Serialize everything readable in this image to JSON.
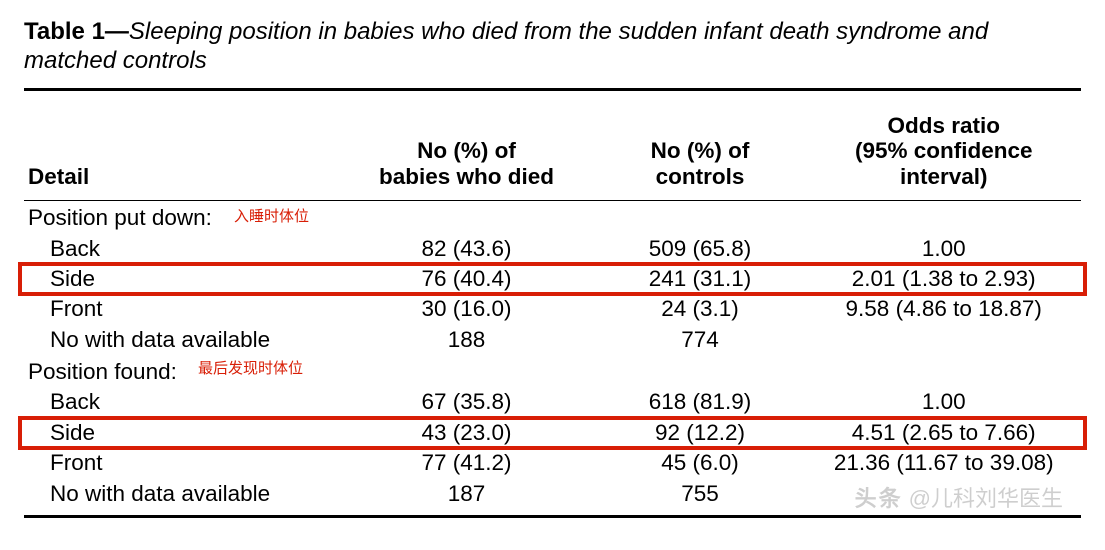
{
  "title_prefix": "Table 1—",
  "title_text": "Sleeping position in babies who died from the sudden infant death syndrome and matched controls",
  "columns": {
    "detail": "Detail",
    "died": "No (%) of\nbabies who died",
    "controls": "No (%) of\ncontrols",
    "odds": "Odds ratio\n(95% confidence\ninterval)"
  },
  "sections": [
    {
      "label": "Position put down:",
      "annotation": "入睡时体位",
      "rows": [
        {
          "label": "Back",
          "died": "82 (43.6)",
          "ctrl": "509 (65.8)",
          "or": "1.00"
        },
        {
          "label": "Side",
          "died": "76 (40.4)",
          "ctrl": "241 (31.1)",
          "or": "2.01 (1.38 to 2.93)",
          "highlight": true
        },
        {
          "label": "Front",
          "died": "30 (16.0)",
          "ctrl": "24 (3.1)",
          "or": "9.58 (4.86 to 18.87)"
        },
        {
          "label": "No with data available",
          "died": "188",
          "ctrl": "774",
          "or": ""
        }
      ]
    },
    {
      "label": "Position found:",
      "annotation": "最后发现时体位",
      "rows": [
        {
          "label": "Back",
          "died": "67 (35.8)",
          "ctrl": "618 (81.9)",
          "or": "1.00"
        },
        {
          "label": "Side",
          "died": "43 (23.0)",
          "ctrl": "92 (12.2)",
          "or": "4.51 (2.65 to 7.66)",
          "highlight": true
        },
        {
          "label": "Front",
          "died": "77 (41.2)",
          "ctrl": "45 (6.0)",
          "or": "21.36 (11.67 to 39.08)"
        },
        {
          "label": "No with data available",
          "died": "187",
          "ctrl": "755",
          "or": ""
        }
      ]
    }
  ],
  "annotation_color": "#d81e06",
  "highlight_color": "#d81e06",
  "watermark_brand": "头条",
  "watermark_handle": "@儿科刘华医生"
}
